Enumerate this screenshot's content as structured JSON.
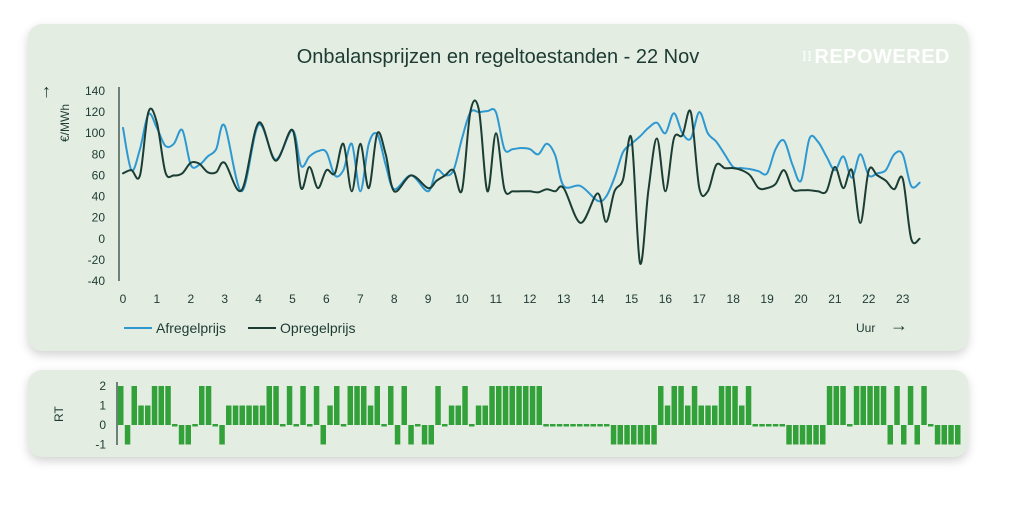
{
  "brand": "REPOWERED",
  "brand_dots": "⁞⁞",
  "up_arrow": "↑",
  "x_arrow": "→",
  "chart_data": [
    {
      "type": "line",
      "title": "Onbalansprijzen en regeltoestanden - 22 Nov",
      "ylabel": "€/MWh",
      "xlabel": "Uur",
      "ylim": [
        -40,
        140
      ],
      "yticks": [
        140,
        120,
        100,
        80,
        60,
        40,
        20,
        0,
        -20,
        -40
      ],
      "xticks": [
        "0",
        "1",
        "2",
        "3",
        "4",
        "5",
        "6",
        "7",
        "8",
        "9",
        "10",
        "11",
        "12",
        "13",
        "14",
        "15",
        "16",
        "17",
        "18",
        "19",
        "20",
        "21",
        "22",
        "23"
      ],
      "grid": false,
      "legend_position": "bottom-left",
      "series": [
        {
          "name": "Afregelprijs",
          "color": "#2e98d1",
          "x": [
            0,
            0.25,
            0.5,
            0.75,
            1,
            1.25,
            1.5,
            1.75,
            2,
            2.25,
            2.5,
            2.75,
            3,
            3.5,
            4,
            4.5,
            5,
            5.25,
            5.5,
            5.75,
            6,
            6.25,
            6.5,
            6.75,
            7,
            7.25,
            7.5,
            7.75,
            8,
            8.5,
            9,
            9.25,
            9.5,
            9.75,
            10,
            10.25,
            10.5,
            10.75,
            11,
            11.25,
            11.5,
            11.75,
            12,
            12.25,
            12.5,
            12.75,
            13,
            13.5,
            14,
            14.25,
            14.5,
            14.75,
            15,
            15.25,
            15.5,
            15.75,
            16,
            16.25,
            16.5,
            16.75,
            17,
            17.25,
            17.5,
            17.75,
            18,
            18.25,
            18.5,
            18.75,
            19,
            19.25,
            19.5,
            19.75,
            20,
            20.25,
            20.5,
            20.75,
            21,
            21.25,
            21.5,
            21.75,
            22,
            22.25,
            22.5,
            22.75,
            23,
            23.25,
            23.5
          ],
          "y": [
            105,
            65,
            85,
            118,
            105,
            88,
            90,
            103,
            70,
            70,
            78,
            85,
            107,
            45,
            108,
            75,
            103,
            69,
            78,
            83,
            82,
            60,
            65,
            90,
            45,
            90,
            99,
            70,
            47,
            60,
            45,
            65,
            60,
            65,
            95,
            120,
            120,
            121,
            120,
            85,
            85,
            86,
            85,
            80,
            90,
            79,
            50,
            50,
            36,
            40,
            58,
            82,
            90,
            97,
            105,
            110,
            100,
            119,
            100,
            95,
            120,
            100,
            92,
            80,
            68,
            67,
            66,
            64,
            62,
            85,
            93,
            70,
            55,
            95,
            92,
            78,
            65,
            78,
            58,
            80,
            60,
            62,
            65,
            80,
            80,
            50,
            53
          ]
        },
        {
          "name": "Opregelprijs",
          "color": "#1b3d34",
          "x": [
            0,
            0.25,
            0.5,
            0.75,
            1,
            1.25,
            1.5,
            1.75,
            2,
            2.25,
            2.5,
            2.75,
            3,
            3.5,
            4,
            4.5,
            5,
            5.25,
            5.5,
            5.75,
            6,
            6.25,
            6.5,
            6.75,
            7,
            7.25,
            7.5,
            7.75,
            8,
            8.5,
            9,
            9.25,
            9.5,
            9.75,
            10,
            10.25,
            10.5,
            10.75,
            11,
            11.25,
            11.5,
            11.75,
            12,
            12.25,
            12.5,
            12.75,
            13,
            13.5,
            14,
            14.25,
            14.5,
            14.75,
            15,
            15.25,
            15.5,
            15.75,
            16,
            16.25,
            16.5,
            16.75,
            17,
            17.25,
            17.5,
            17.75,
            18,
            18.25,
            18.5,
            18.75,
            19,
            19.25,
            19.5,
            19.75,
            20,
            20.25,
            20.5,
            20.75,
            21,
            21.25,
            21.5,
            21.75,
            22,
            22.25,
            22.5,
            22.75,
            23,
            23.25,
            23.5
          ],
          "y": [
            62,
            65,
            60,
            120,
            110,
            63,
            60,
            62,
            72,
            71,
            63,
            63,
            72,
            46,
            110,
            74,
            103,
            48,
            68,
            48,
            65,
            62,
            90,
            45,
            90,
            48,
            100,
            80,
            45,
            60,
            48,
            55,
            60,
            65,
            46,
            121,
            122,
            45,
            100,
            47,
            45,
            45,
            45,
            44,
            47,
            45,
            48,
            15,
            43,
            16,
            45,
            56,
            95,
            -23,
            46,
            95,
            45,
            95,
            98,
            120,
            48,
            45,
            70,
            67,
            67,
            65,
            60,
            48,
            48,
            52,
            65,
            47,
            46,
            46,
            45,
            45,
            68,
            48,
            65,
            15,
            65,
            60,
            55,
            47,
            57,
            0,
            0
          ]
        }
      ]
    },
    {
      "type": "bar",
      "ylabel": "RT",
      "ylim": [
        -1,
        2
      ],
      "yticks": [
        2,
        1,
        0,
        -1
      ],
      "color": "#33a13a",
      "values": [
        2,
        -1,
        2,
        1,
        1,
        2,
        2,
        2,
        0,
        -1,
        -1,
        0,
        2,
        2,
        0,
        -1,
        1,
        1,
        1,
        1,
        1,
        1,
        2,
        2,
        0,
        2,
        0,
        2,
        0,
        2,
        -1,
        1,
        2,
        0,
        2,
        2,
        2,
        1,
        2,
        0,
        2,
        -1,
        2,
        -1,
        0,
        -1,
        -1,
        2,
        0,
        1,
        1,
        2,
        0,
        1,
        1,
        2,
        2,
        2,
        2,
        2,
        2,
        2,
        2,
        0,
        0,
        0,
        0,
        0,
        0,
        0,
        0,
        0,
        0,
        -1,
        -1,
        -1,
        -1,
        -1,
        -1,
        -1,
        2,
        1,
        2,
        2,
        1,
        2,
        1,
        1,
        1,
        2,
        2,
        2,
        1,
        2,
        0,
        0,
        0,
        0,
        0,
        -1,
        -1,
        -1,
        -1,
        -1,
        -1,
        2,
        2,
        2,
        0,
        2,
        2,
        2,
        2,
        2,
        -1,
        2,
        -1,
        2,
        -1,
        2,
        0,
        -1,
        -1,
        -1,
        -1
      ]
    }
  ]
}
